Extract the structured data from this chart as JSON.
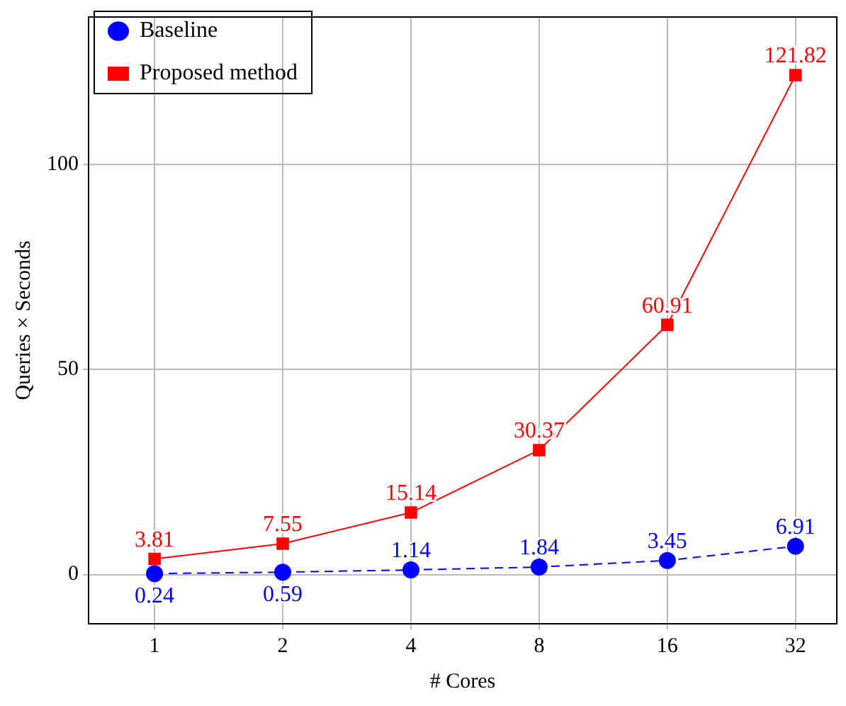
{
  "chart_data": {
    "type": "line",
    "xlabel": "# Cores",
    "ylabel": "Queries × Seconds",
    "x": [
      1,
      2,
      4,
      8,
      16,
      32
    ],
    "log": "x",
    "xlim": [
      0.707,
      40
    ],
    "xticks": [
      1,
      2,
      4,
      8,
      16,
      32
    ],
    "ylim": [
      -12,
      136
    ],
    "yticks": [
      0,
      50,
      100
    ],
    "grid": true,
    "legend": "top left",
    "data_labels": true,
    "series": [
      {
        "name": "Baseline",
        "color": "#0000ff",
        "marker": "circle",
        "line_style": "dashed",
        "values": [
          0.24,
          0.59,
          1.14,
          1.84,
          3.45,
          6.91
        ]
      },
      {
        "name": "Proposed method",
        "color": "#ff0000",
        "marker": "square",
        "line_style": "solid",
        "values": [
          3.81,
          7.55,
          15.14,
          30.37,
          60.91,
          121.82
        ]
      }
    ]
  }
}
